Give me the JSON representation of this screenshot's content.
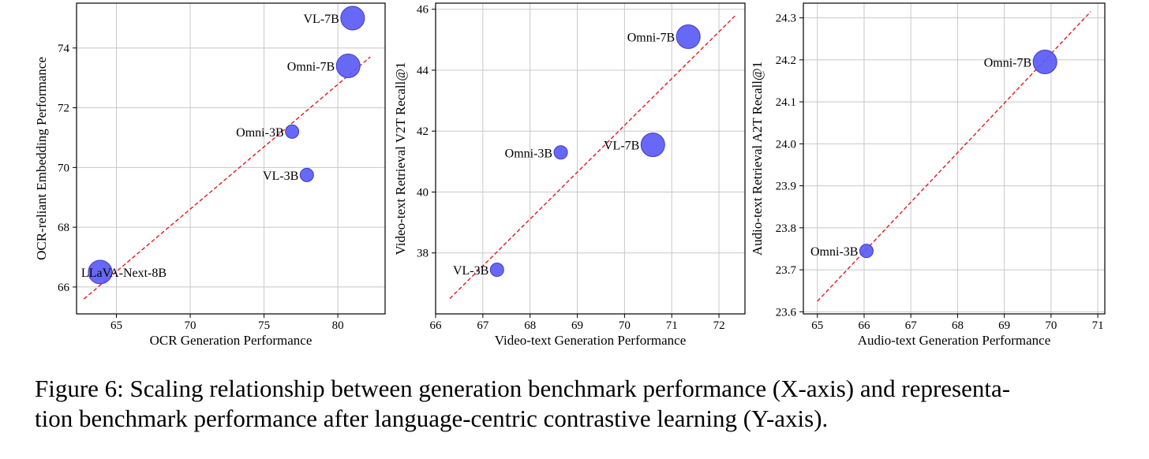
{
  "caption": {
    "line1": "Figure 6: Scaling relationship between generation benchmark performance (X-axis) and representa-",
    "line2": "tion benchmark performance after language-centric contrastive learning (Y-axis)."
  },
  "colors": {
    "marker": "#5b5bf5",
    "marker_edge": "#3b3bd0",
    "trend": "#e31a1c",
    "grid": "#c8c8c8"
  },
  "chart_data": [
    {
      "type": "scatter",
      "xlabel": "OCR Generation Performance",
      "ylabel": "OCR-reliant Embedding Performance",
      "xlim": [
        62.3,
        83.2
      ],
      "ylim": [
        65.1,
        75.5
      ],
      "xticks": [
        65,
        70,
        75,
        80
      ],
      "yticks": [
        66,
        68,
        70,
        72,
        74
      ],
      "grid": true,
      "trendline": {
        "x": [
          62.8,
          82.2
        ],
        "y": [
          65.6,
          73.7
        ]
      },
      "points": [
        {
          "label": "VL-7B",
          "x": 81.0,
          "y": 75.0,
          "size": "large",
          "label_side": "left"
        },
        {
          "label": "Omni-7B",
          "x": 80.7,
          "y": 73.4,
          "size": "large",
          "label_side": "left"
        },
        {
          "label": "Omni-3B",
          "x": 76.9,
          "y": 71.2,
          "size": "small",
          "label_side": "left"
        },
        {
          "label": "VL-3B",
          "x": 77.9,
          "y": 69.75,
          "size": "small",
          "label_side": "left"
        },
        {
          "label": "LLaVA-Next-8B",
          "x": 63.9,
          "y": 66.5,
          "size": "large",
          "label_side": "center-right"
        }
      ]
    },
    {
      "type": "scatter",
      "xlabel": "Video-text Generation Performance",
      "ylabel": "Video-text Retrieval V2T Recall@1",
      "xlim": [
        66.0,
        72.55
      ],
      "ylim": [
        36.0,
        46.2
      ],
      "xticks": [
        66,
        67,
        68,
        69,
        70,
        71,
        72
      ],
      "yticks": [
        38,
        40,
        42,
        44,
        46
      ],
      "grid": true,
      "trendline": {
        "x": [
          66.3,
          72.35
        ],
        "y": [
          36.5,
          45.8
        ]
      },
      "points": [
        {
          "label": "Omni-7B",
          "x": 71.35,
          "y": 45.1,
          "size": "large",
          "label_side": "left"
        },
        {
          "label": "VL-7B",
          "x": 70.6,
          "y": 41.55,
          "size": "large",
          "label_side": "left"
        },
        {
          "label": "Omni-3B",
          "x": 68.65,
          "y": 41.3,
          "size": "small",
          "label_side": "left"
        },
        {
          "label": "VL-3B",
          "x": 67.3,
          "y": 37.45,
          "size": "small",
          "label_side": "left"
        }
      ]
    },
    {
      "type": "scatter",
      "xlabel": "Audio-text Generation Performance",
      "ylabel": "Audio-text Retrieval A2T Recall@1",
      "xlim": [
        64.7,
        71.15
      ],
      "ylim": [
        23.595,
        24.335
      ],
      "xticks": [
        65,
        66,
        67,
        68,
        69,
        70,
        71
      ],
      "yticks": [
        23.6,
        23.7,
        23.8,
        23.9,
        24.0,
        24.1,
        24.2,
        24.3
      ],
      "grid": true,
      "trendline": {
        "x": [
          65.0,
          70.85
        ],
        "y": [
          23.625,
          24.315
        ]
      },
      "points": [
        {
          "label": "Omni-7B",
          "x": 69.87,
          "y": 24.195,
          "size": "large",
          "label_side": "left"
        },
        {
          "label": "Omni-3B",
          "x": 66.05,
          "y": 23.745,
          "size": "small",
          "label_side": "left"
        }
      ]
    }
  ]
}
